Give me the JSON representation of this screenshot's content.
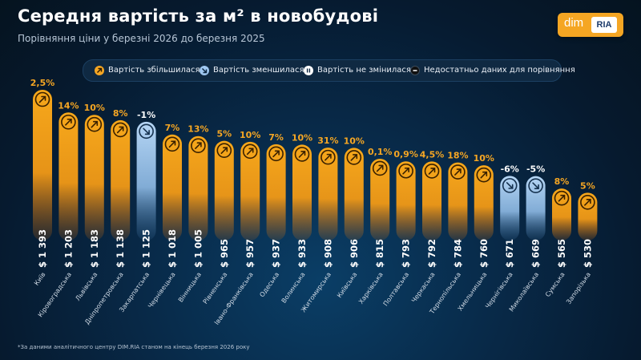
{
  "header": {
    "title": "Середня вартість за м² в новобудові",
    "subtitle": "Порівняння ціни у березні 2026 до березня 2025"
  },
  "logo": {
    "dim": "dim",
    "ria": "RIA"
  },
  "legend": [
    {
      "label": "Вартість збільшилася",
      "icon": "arrow-up-right-icon",
      "color": "#f5a623"
    },
    {
      "label": "Вартість зменшилася",
      "icon": "arrow-down-right-icon",
      "color": "#9fc7f0"
    },
    {
      "label": "Вартість не змінилася",
      "icon": "pause-icon",
      "color": "#ffffff"
    },
    {
      "label": "Недостатньо даних для порівняння",
      "icon": "minus-icon",
      "color": "#111111"
    }
  ],
  "colors": {
    "increase": "#f5a623",
    "decrease": "#a8cdf2"
  },
  "chart_data": {
    "type": "bar",
    "categories": [
      "Київ",
      "Кіровоградська",
      "Львівська",
      "Дніпропетровська",
      "Закарпатська",
      "Чернівецька",
      "Вінницька",
      "Рівненська",
      "Івано-Франківська",
      "Одеська",
      "Волинська",
      "Житомирська",
      "Київська",
      "Харківська",
      "Полтавська",
      "Черкаська",
      "Тернопільська",
      "Хмельницька",
      "Чернігівська",
      "Миколаївська",
      "Сумська",
      "Запорізька"
    ],
    "values": [
      1393,
      1203,
      1183,
      1138,
      1125,
      1018,
      1005,
      965,
      957,
      937,
      933,
      908,
      906,
      815,
      793,
      792,
      784,
      760,
      671,
      669,
      565,
      530
    ],
    "value_labels": [
      "$ 1 393",
      "$ 1 203",
      "$ 1 183",
      "$ 1 138",
      "$ 1 125",
      "$ 1 018",
      "$ 1 005",
      "$ 965",
      "$ 957",
      "$ 937",
      "$ 933",
      "$ 908",
      "$ 906",
      "$ 815",
      "$ 793",
      "$ 792",
      "$ 784",
      "$ 760",
      "$ 671",
      "$ 669",
      "$ 565",
      "$ 530"
    ],
    "change_labels": [
      "2,5%",
      "14%",
      "10%",
      "8%",
      "-1%",
      "7%",
      "13%",
      "5%",
      "10%",
      "7%",
      "10%",
      "31%",
      "10%",
      "0,1%",
      "0,9%",
      "4,5%",
      "18%",
      "10%",
      "-6%",
      "-5%",
      "8%",
      "5%"
    ],
    "directions": [
      "up",
      "up",
      "up",
      "up",
      "down",
      "up",
      "up",
      "up",
      "up",
      "up",
      "up",
      "up",
      "up",
      "up",
      "up",
      "up",
      "up",
      "up",
      "down",
      "down",
      "up",
      "up"
    ]
  },
  "footnote": "*За даними аналітичного центру DIM.RIA станом на кінець березня 2026 року"
}
